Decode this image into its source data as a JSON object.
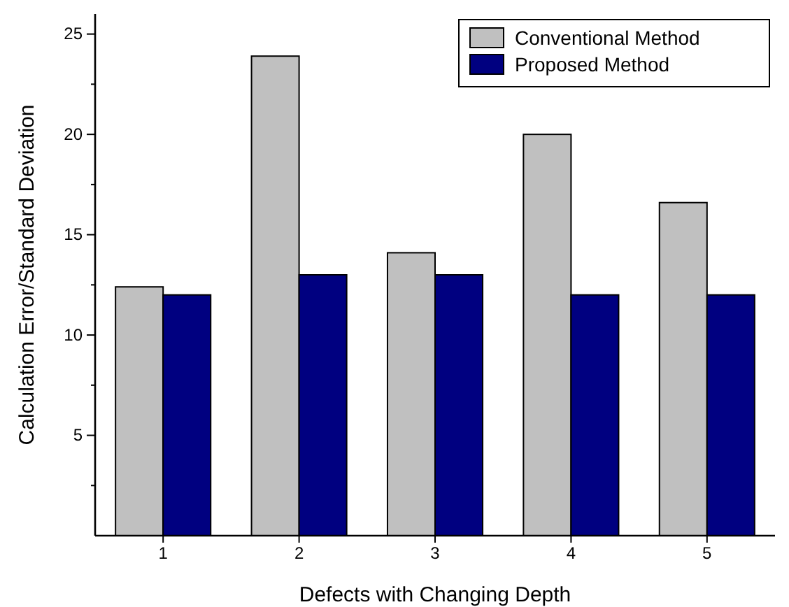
{
  "chart_data": {
    "type": "bar",
    "xlabel": "Defects with Changing Depth",
    "ylabel": "Calculation Error/Standard Deviation",
    "categories": [
      "1",
      "2",
      "3",
      "4",
      "5"
    ],
    "series": [
      {
        "name": "Conventional Method",
        "color": "#c0c0c0",
        "values": [
          12.4,
          23.9,
          14.1,
          20,
          16.6
        ]
      },
      {
        "name": "Proposed Method",
        "color": "#000080",
        "values": [
          12,
          13,
          13,
          12,
          12
        ]
      }
    ],
    "ylim": [
      0,
      26
    ],
    "yticks": [
      {
        "value": 2.5,
        "label": null
      },
      5,
      {
        "value": 7.5,
        "label": null
      },
      10,
      {
        "value": 12.5,
        "label": null
      },
      15,
      {
        "value": 17.5,
        "label": null
      },
      20,
      {
        "value": 22.5,
        "label": null
      },
      25
    ],
    "grid": false,
    "legend": "top right"
  }
}
